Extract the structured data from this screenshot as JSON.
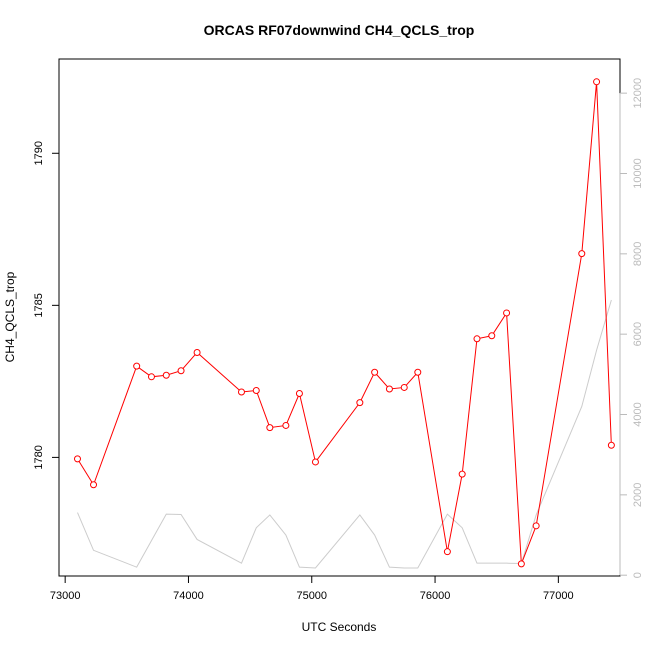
{
  "chart_data": {
    "type": "line",
    "title": "ORCAS RF07downwind CH4_QCLS_trop",
    "xlabel": "UTC Seconds",
    "ylabel": "CH4_QCLS_trop",
    "xlim": [
      72950,
      77500
    ],
    "ylim": [
      1776.1,
      1793.1
    ],
    "y2lim": [
      -20,
      12850
    ],
    "x_ticks": [
      73000,
      74000,
      75000,
      76000,
      77000
    ],
    "y_ticks": [
      1780,
      1785,
      1790
    ],
    "y2_ticks": [
      0,
      2000,
      4000,
      6000,
      8000,
      10000,
      12000
    ],
    "grid": false,
    "series": [
      {
        "color": "#ff0000",
        "axis": "left",
        "markers": "open-circle",
        "points": [
          [
            73100,
            1779.95
          ],
          [
            73230,
            1779.1
          ],
          [
            73580,
            1783.0
          ],
          [
            73700,
            1782.65
          ],
          [
            73820,
            1782.7
          ],
          [
            73940,
            1782.85
          ],
          [
            74070,
            1783.45
          ],
          [
            74430,
            1782.15
          ],
          [
            74550,
            1782.2
          ],
          [
            74660,
            1780.98
          ],
          [
            74790,
            1781.05
          ],
          [
            74900,
            1782.1
          ],
          [
            75030,
            1779.85
          ],
          [
            75390,
            1781.8
          ],
          [
            75510,
            1782.8
          ],
          [
            75630,
            1782.25
          ],
          [
            75750,
            1782.3
          ],
          [
            75860,
            1782.8
          ],
          [
            76100,
            1776.9
          ],
          [
            76220,
            1779.45
          ],
          [
            76340,
            1783.9
          ],
          [
            76460,
            1784.0
          ],
          [
            76580,
            1784.75
          ],
          [
            76700,
            1776.5
          ],
          [
            76820,
            1777.75
          ],
          [
            77190,
            1786.7
          ],
          [
            77310,
            1792.35
          ],
          [
            77430,
            1780.4
          ]
        ]
      },
      {
        "color": "#cccccc",
        "axis": "right",
        "markers": "none",
        "points": [
          [
            73100,
            1560
          ],
          [
            73230,
            620
          ],
          [
            73580,
            200
          ],
          [
            73700,
            860
          ],
          [
            73820,
            1520
          ],
          [
            73940,
            1510
          ],
          [
            74070,
            890
          ],
          [
            74430,
            300
          ],
          [
            74550,
            1180
          ],
          [
            74660,
            1500
          ],
          [
            74790,
            1000
          ],
          [
            74900,
            200
          ],
          [
            75030,
            180
          ],
          [
            75390,
            1500
          ],
          [
            75510,
            1000
          ],
          [
            75630,
            200
          ],
          [
            75750,
            180
          ],
          [
            75860,
            180
          ],
          [
            76100,
            1520
          ],
          [
            76220,
            1180
          ],
          [
            76340,
            300
          ],
          [
            76460,
            300
          ],
          [
            76580,
            300
          ],
          [
            76700,
            290
          ],
          [
            76820,
            1500
          ],
          [
            77190,
            4200
          ],
          [
            77310,
            5600
          ],
          [
            77430,
            6850
          ]
        ]
      }
    ]
  }
}
